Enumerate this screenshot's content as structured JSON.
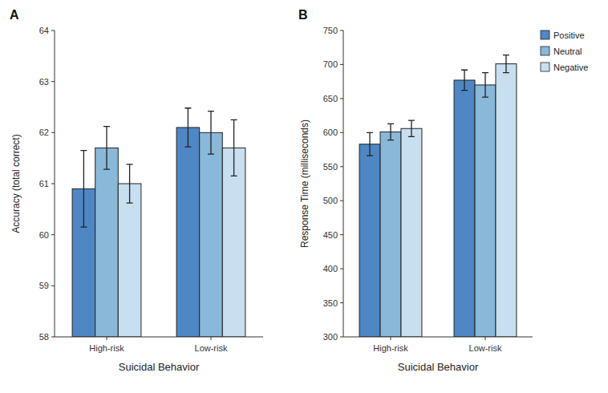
{
  "chart_data": [
    {
      "type": "bar",
      "title": "A",
      "xlabel": "Suicidal Behavior",
      "ylabel": "Accuracy (total correct)",
      "categories": [
        "High-risk",
        "Low-risk"
      ],
      "series": [
        {
          "name": "Positive",
          "color": "#4e87c4",
          "values": [
            60.9,
            62.1
          ],
          "errors": [
            0.75,
            0.38
          ]
        },
        {
          "name": "Neutral",
          "color": "#89b8d8",
          "values": [
            61.7,
            62.0
          ],
          "errors": [
            0.42,
            0.42
          ]
        },
        {
          "name": "Negative",
          "color": "#c8dff0",
          "values": [
            61.0,
            61.7
          ],
          "errors": [
            0.38,
            0.55
          ]
        }
      ],
      "ylim": [
        58,
        64
      ],
      "yticks": [
        58,
        59,
        60,
        61,
        62,
        63,
        64
      ],
      "grid": false,
      "legend": false
    },
    {
      "type": "bar",
      "title": "B",
      "xlabel": "Suicidal Behavior",
      "ylabel": "Response Time (milliseconds)",
      "categories": [
        "High-risk",
        "Low-risk"
      ],
      "series": [
        {
          "name": "Positive",
          "color": "#4e87c4",
          "values": [
            583,
            677
          ],
          "errors": [
            17,
            15
          ]
        },
        {
          "name": "Neutral",
          "color": "#89b8d8",
          "values": [
            601,
            670
          ],
          "errors": [
            12,
            18
          ]
        },
        {
          "name": "Negative",
          "color": "#c8dff0",
          "values": [
            606,
            701
          ],
          "errors": [
            12,
            13
          ]
        }
      ],
      "ylim": [
        300,
        750
      ],
      "yticks": [
        300,
        350,
        400,
        450,
        500,
        550,
        600,
        650,
        700,
        750
      ],
      "grid": false,
      "legend": "upper right"
    }
  ]
}
